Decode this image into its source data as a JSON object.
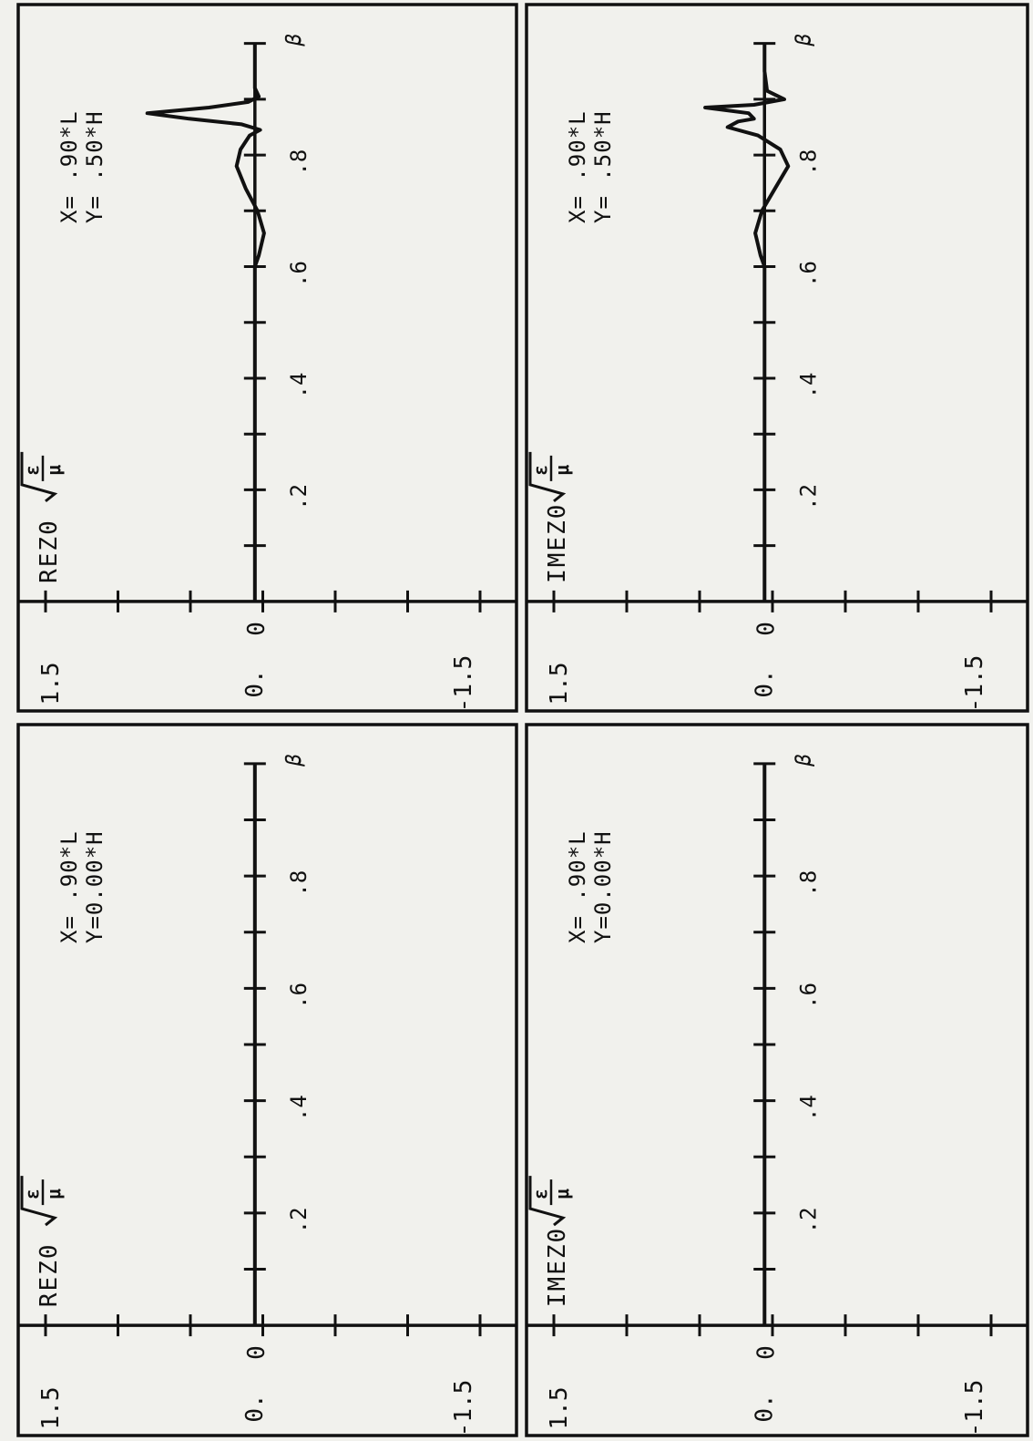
{
  "panels": [
    {
      "component": "REZ0",
      "x_label": "X= .90*L",
      "y_label": "Y=0.00*H",
      "ymax_tick": "1.5",
      "ymin_tick": "-1.5",
      "zero_tick": "0",
      "y_zero_label": "0.",
      "beta_label": "β"
    },
    {
      "component": "IMEZ0",
      "x_label": "X= .90*L",
      "y_label": "Y=0.00*H",
      "ymax_tick": "1.5",
      "ymin_tick": "-1.5",
      "zero_tick": "0",
      "y_zero_label": "0.",
      "beta_label": "β"
    },
    {
      "component": "REZ0",
      "x_label": "X= .90*L",
      "y_label": "Y= .50*H",
      "ymax_tick": "1.5",
      "ymin_tick": "-1.5",
      "zero_tick": "0",
      "y_zero_label": "0.",
      "beta_label": "β"
    },
    {
      "component": "IMEZ0",
      "x_label": "X= .90*L",
      "y_label": "Y= .50*H",
      "ymax_tick": "1.5",
      "ymin_tick": "-1.5",
      "zero_tick": "0",
      "y_zero_label": "0.",
      "beta_label": "β"
    }
  ],
  "chart_data": [
    {
      "type": "line",
      "component": "REZ0",
      "x_label": "X= .90*L",
      "y_label": "Y=0.00*H",
      "x_tick_labels": [
        ".2",
        ".4",
        ".6",
        ".8"
      ],
      "xlim": [
        0,
        1.0
      ],
      "ylim": [
        -1.5,
        1.5
      ],
      "x": [
        0,
        0.1,
        0.2,
        0.3,
        0.4,
        0.5,
        0.6,
        0.7,
        0.8,
        0.9,
        1.0
      ],
      "y": [
        0,
        0,
        0,
        0,
        0,
        0,
        0,
        0,
        0,
        0,
        0
      ]
    },
    {
      "type": "line",
      "component": "IMEZ0",
      "x_label": "X= .90*L",
      "y_label": "Y=0.00*H",
      "x_tick_labels": [
        ".2",
        ".4",
        ".6",
        ".8"
      ],
      "xlim": [
        0,
        1.0
      ],
      "ylim": [
        -1.5,
        1.5
      ],
      "x": [
        0,
        0.1,
        0.2,
        0.3,
        0.4,
        0.5,
        0.6,
        0.7,
        0.8,
        0.9,
        1.0
      ],
      "y": [
        0,
        0,
        0,
        0,
        0,
        0,
        0,
        0,
        0,
        0,
        0
      ]
    },
    {
      "type": "line",
      "component": "REZ0",
      "x_label": "X= .90*L",
      "y_label": "Y= .50*H",
      "x_tick_labels": [
        ".2",
        ".4",
        ".6",
        ".8"
      ],
      "xlim": [
        0,
        1.0
      ],
      "ylim": [
        -1.5,
        1.5
      ],
      "x": [
        0,
        0.1,
        0.2,
        0.3,
        0.4,
        0.5,
        0.6,
        0.62,
        0.66,
        0.7,
        0.74,
        0.78,
        0.81,
        0.835,
        0.845,
        0.855,
        0.865,
        0.875,
        0.885,
        0.895,
        0.905,
        0.92,
        0.95,
        1.0
      ],
      "y": [
        0,
        0,
        0,
        0,
        0,
        0,
        0,
        -0.03,
        -0.07,
        -0.02,
        0.07,
        0.14,
        0.11,
        0.04,
        -0.04,
        0.1,
        0.5,
        0.82,
        0.35,
        0.05,
        -0.03,
        0,
        0,
        0
      ]
    },
    {
      "type": "line",
      "component": "IMEZ0",
      "x_label": "X= .90*L",
      "y_label": "Y= .50*H",
      "x_tick_labels": [
        ".2",
        ".4",
        ".6",
        ".8"
      ],
      "xlim": [
        0,
        1.0
      ],
      "ylim": [
        -1.5,
        1.5
      ],
      "x": [
        0,
        0.1,
        0.2,
        0.3,
        0.4,
        0.5,
        0.6,
        0.62,
        0.66,
        0.7,
        0.74,
        0.78,
        0.81,
        0.835,
        0.85,
        0.86,
        0.865,
        0.875,
        0.885,
        0.89,
        0.9,
        0.915,
        0.95,
        1.0
      ],
      "y": [
        0,
        0,
        0,
        0,
        0,
        0,
        0,
        0.03,
        0.07,
        0.02,
        -0.08,
        -0.18,
        -0.12,
        0.05,
        0.28,
        0.2,
        0.08,
        0.12,
        0.45,
        0.08,
        -0.15,
        -0.02,
        0,
        0
      ]
    }
  ]
}
